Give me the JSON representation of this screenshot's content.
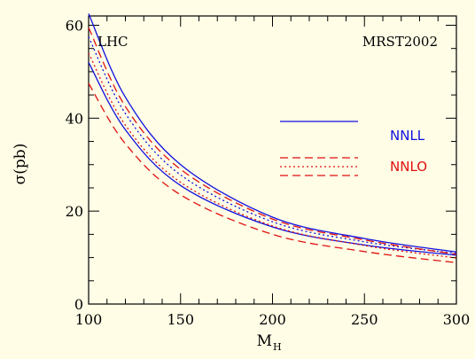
{
  "chart_data": {
    "type": "line",
    "title": "",
    "xlabel": "M",
    "xlabel_sub": "H",
    "ylabel": "σ(pb)",
    "xlim": [
      100,
      300
    ],
    "ylim": [
      0,
      62
    ],
    "xticks": [
      100,
      150,
      200,
      250,
      300
    ],
    "xtick_labels": [
      "100",
      "150",
      "200",
      "250",
      "300"
    ],
    "yticks": [
      0,
      20,
      40,
      60
    ],
    "ytick_labels": [
      "0",
      "20",
      "40",
      "60"
    ],
    "grid": false,
    "annotations": {
      "collider": "LHC",
      "pdf": "MRST2002"
    },
    "legend": [
      {
        "label": "NNLL",
        "color": "#1010e0"
      },
      {
        "label": "NNLO",
        "color": "#e01010"
      }
    ],
    "x": [
      100,
      120,
      150,
      200,
      250,
      300
    ],
    "series": [
      {
        "group": "NNLL",
        "color": "#1010e0",
        "dash": "solid",
        "values": [
          62.5,
          44.5,
          30.0,
          18.7,
          14.1,
          11.2
        ]
      },
      {
        "group": "NNLL",
        "color": "#1010e0",
        "dash": "solid",
        "values": [
          52.0,
          37.5,
          25.5,
          16.6,
          12.7,
          10.5
        ]
      },
      {
        "group": "NNLL",
        "color": "#1010e0",
        "dash": "dot",
        "values": [
          57.5,
          41.0,
          27.8,
          17.7,
          13.4,
          10.9
        ]
      },
      {
        "group": "NNLO",
        "color": "#e01010",
        "dash": "dash",
        "values": [
          59.5,
          42.5,
          29.0,
          18.3,
          13.8,
          10.7
        ]
      },
      {
        "group": "NNLO",
        "color": "#e01010",
        "dash": "dot",
        "values": [
          54.0,
          38.5,
          26.2,
          16.8,
          12.6,
          9.9
        ]
      },
      {
        "group": "NNLO",
        "color": "#e01010",
        "dash": "dash",
        "values": [
          47.5,
          34.5,
          23.5,
          15.0,
          11.3,
          8.9
        ]
      }
    ]
  }
}
